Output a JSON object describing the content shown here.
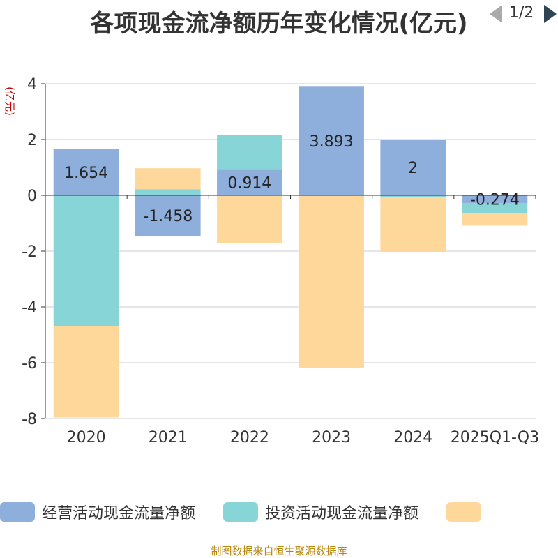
{
  "chart_data": {
    "type": "bar",
    "stacked": true,
    "title": "各项现金流净额历年变化情况(亿元)",
    "ylabel": "(亿元)",
    "xlabel": "",
    "ylim": [
      -8,
      4
    ],
    "yticks": [
      4,
      2,
      0,
      -2,
      -4,
      -6,
      -8
    ],
    "categories": [
      "2020",
      "2021",
      "2022",
      "2023",
      "2024",
      "2025Q1-Q3"
    ],
    "series": [
      {
        "name": "经营活动现金流量净额",
        "color": "#8eaedb",
        "values": [
          1.654,
          -1.458,
          0.914,
          3.893,
          2,
          -0.274
        ],
        "labels": [
          "1.654",
          "-1.458",
          "0.914",
          "3.893",
          "2",
          "-0.274"
        ]
      },
      {
        "name": "投资活动现金流量净额",
        "color": "#88d5d8",
        "values": [
          -4.7,
          0.22,
          1.25,
          0,
          -0.08,
          -0.36
        ]
      },
      {
        "name": "",
        "color": "#fdd89a",
        "values": [
          -3.26,
          0.75,
          -1.72,
          -6.2,
          -1.97,
          -0.45
        ]
      }
    ]
  },
  "legend": {
    "page": "1/2"
  },
  "footer": "制图数据来自恒生聚源数据库"
}
